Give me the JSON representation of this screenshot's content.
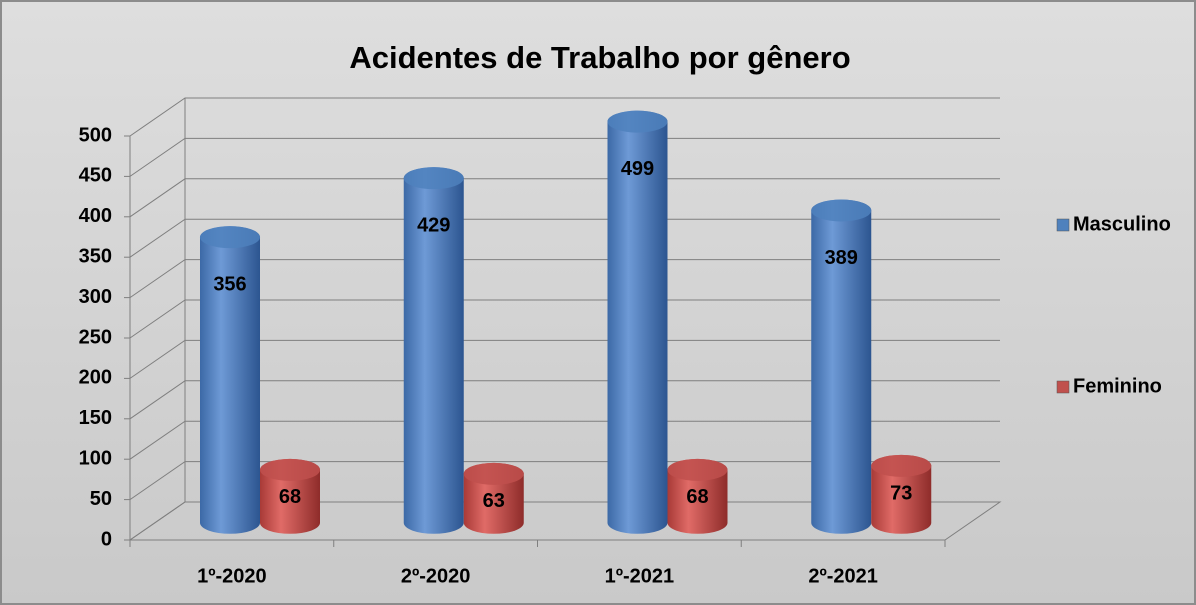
{
  "chart_data": {
    "type": "bar3d",
    "title": "Acidentes de Trabalho por gênero",
    "categories": [
      "1º-2020",
      "2º-2020",
      "1º-2021",
      "2º-2021"
    ],
    "series": [
      {
        "name": "Masculino",
        "color": "#4f81bd",
        "values": [
          356,
          429,
          499,
          389
        ]
      },
      {
        "name": "Feminino",
        "color": "#c0504d",
        "values": [
          68,
          63,
          68,
          73
        ]
      }
    ],
    "ylim": [
      0,
      500
    ],
    "yticks": [
      0,
      50,
      100,
      150,
      200,
      250,
      300,
      350,
      400,
      450,
      500
    ],
    "grid": true,
    "legend": "right"
  }
}
